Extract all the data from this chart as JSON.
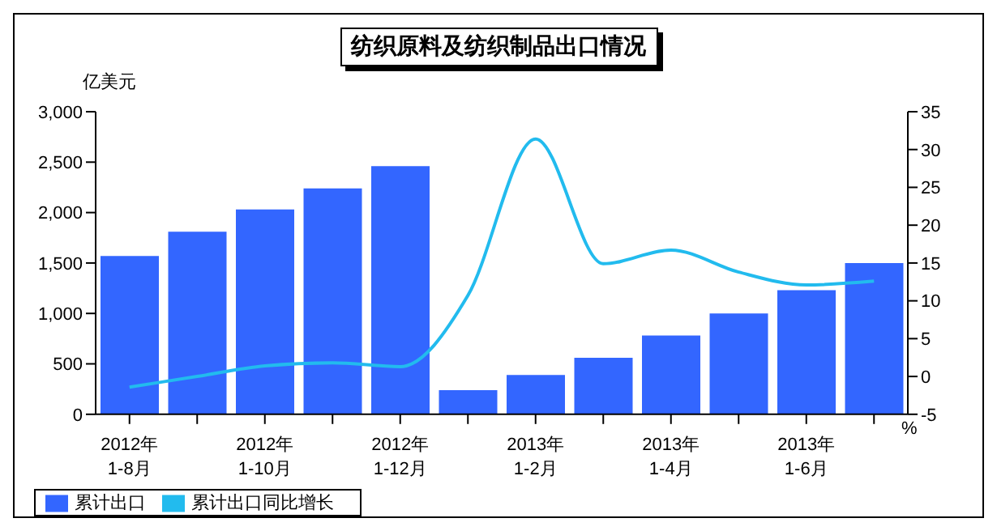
{
  "chart_data": {
    "type": "bar",
    "title": "纺织原料及纺织制品出口情况",
    "ylabel": "亿美元",
    "y2label": "%",
    "categories": [
      "2012年 1-8月",
      null,
      "2012年 1-10月",
      null,
      "2012年 1-12月",
      null,
      "2013年 1-2月",
      null,
      "2013年 1-4月",
      null,
      "2013年 1-6月",
      null
    ],
    "series": [
      {
        "name": "累计出口",
        "color": "#3366ff",
        "values": [
          1570,
          1810,
          2030,
          2240,
          2460,
          240,
          390,
          560,
          780,
          1000,
          1230,
          1500
        ]
      },
      {
        "name": "累计出口同比增长",
        "type": "line",
        "axis": "y2",
        "color": "#22bbee",
        "values": [
          -1.4,
          0.0,
          1.4,
          1.8,
          1.3,
          10.7,
          31.4,
          14.9,
          16.7,
          13.8,
          12.1,
          12.6
        ]
      }
    ],
    "ylim": [
      0,
      3000
    ],
    "yticks": [
      0,
      {
        "value": 500,
        "label": "500"
      },
      {
        "value": 1000,
        "label": "1,000"
      },
      {
        "value": 1500,
        "label": "1,500"
      },
      {
        "value": 2000,
        "label": "2,000"
      },
      {
        "value": 2500,
        "label": "2,500"
      },
      {
        "value": 3000,
        "label": "3,000"
      }
    ],
    "y2lim": [
      -5,
      35
    ],
    "y2ticks": [
      -5,
      0,
      5,
      10,
      15,
      20,
      25,
      30,
      35
    ],
    "grid": false,
    "legend": "bottom left",
    "marker": "none",
    "line_style": "solid"
  }
}
